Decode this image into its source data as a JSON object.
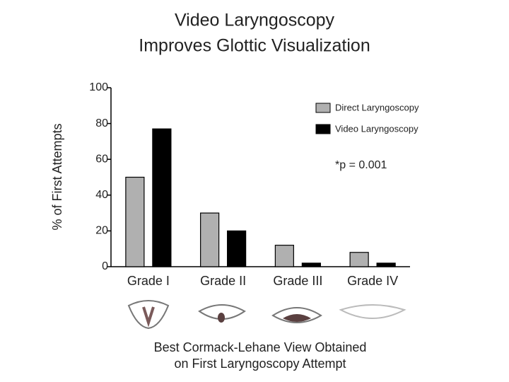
{
  "chart_data": {
    "type": "bar",
    "title": [
      "Video Laryngoscopy",
      "Improves Glottic Visualization"
    ],
    "y_label": "% of First Attempts",
    "x_label": [
      "Best Cormack-Lehane View Obtained",
      "on First Laryngoscopy Attempt"
    ],
    "annotation": "*p = 0.001",
    "categories": [
      "Grade I",
      "Grade II",
      "Grade III",
      "Grade IV"
    ],
    "series": [
      {
        "name": "Direct Laryngoscopy",
        "color": "#b0b0b0",
        "values": [
          50,
          30,
          12,
          8
        ]
      },
      {
        "name": "Video Laryngoscopy",
        "color": "#000000",
        "values": [
          77,
          20,
          2,
          2
        ]
      }
    ],
    "ylim": [
      0,
      100
    ],
    "yticks": [
      0,
      20,
      40,
      60,
      80,
      100
    ],
    "grid": false,
    "legend": "top-right"
  }
}
